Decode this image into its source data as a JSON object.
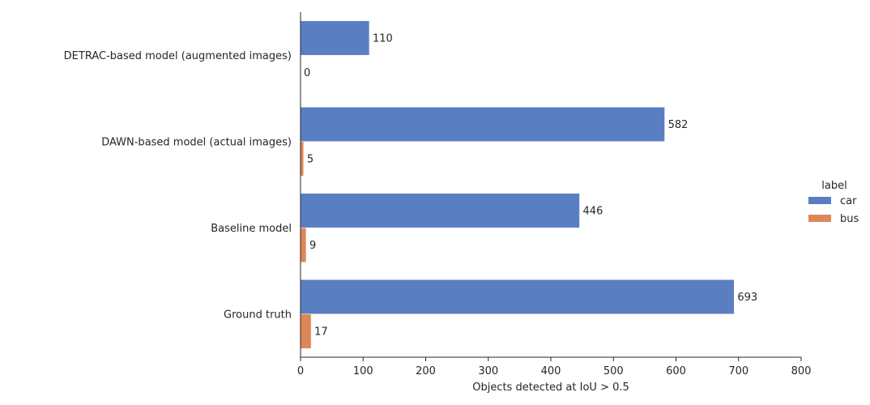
{
  "chart_data": {
    "type": "bar",
    "orientation": "horizontal",
    "title": "",
    "xlabel": "Objects detected at IoU > 0.5",
    "ylabel": "",
    "xlim": [
      0,
      800
    ],
    "xticks": [
      0,
      100,
      200,
      300,
      400,
      500,
      600,
      700,
      800
    ],
    "grid": false,
    "legend_position": "right",
    "legend_title": "label",
    "categories": [
      "DETRAC-based model (augmented images)",
      "DAWN-based model (actual images)",
      "Baseline model",
      "Ground truth"
    ],
    "series": [
      {
        "name": "car",
        "color": "#5a7ec2",
        "values": [
          110,
          582,
          446,
          693
        ]
      },
      {
        "name": "bus",
        "color": "#dd8758",
        "values": [
          0,
          5,
          9,
          17
        ]
      }
    ]
  }
}
